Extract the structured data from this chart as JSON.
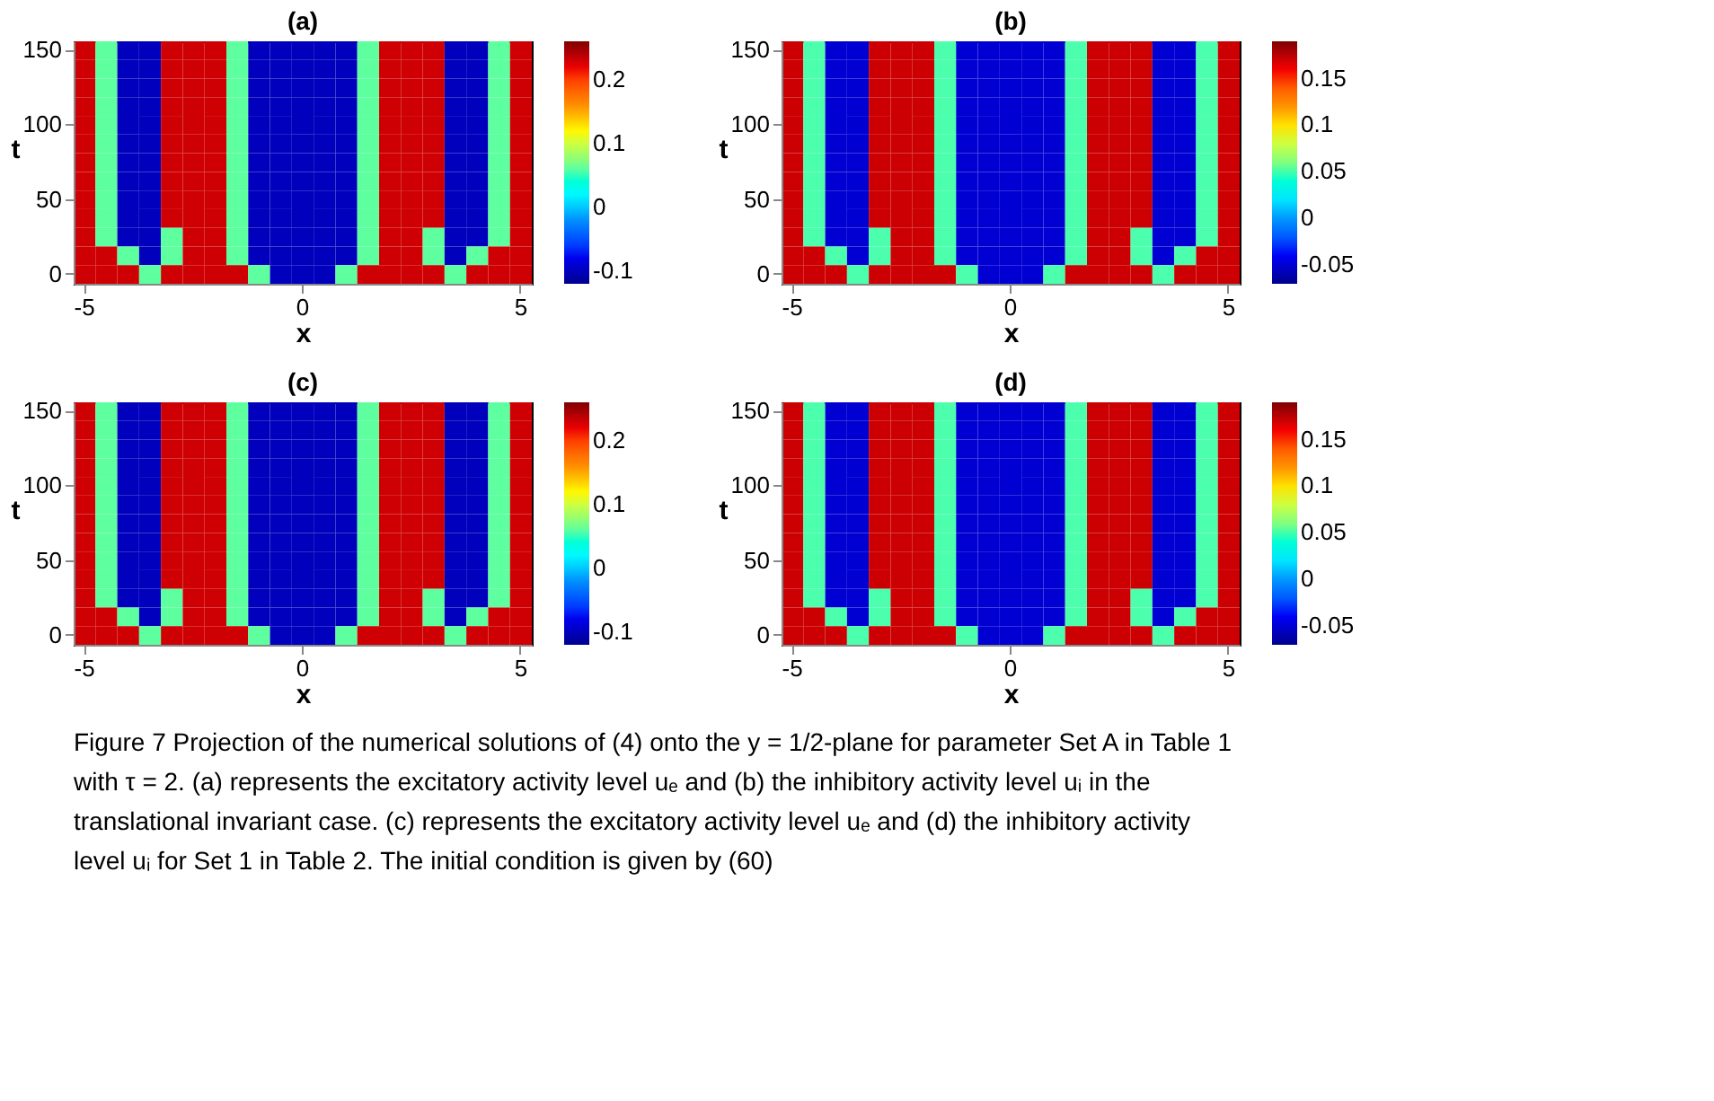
{
  "chart_data": [
    {
      "type": "heatmap",
      "title": "(a)",
      "xlabel": "x",
      "ylabel": "t",
      "clim": [
        -0.12,
        0.26
      ],
      "cticks": [
        -0.1,
        0,
        0.1,
        0.2
      ],
      "grid": false,
      "categories": [
        "-5",
        null,
        null,
        null,
        null,
        null,
        null,
        null,
        null,
        null,
        "0",
        null,
        null,
        null,
        null,
        null,
        null,
        null,
        null,
        null,
        "5"
      ],
      "y_categories": [
        "150",
        null,
        null,
        null,
        "100",
        null,
        null,
        null,
        "50",
        null,
        null,
        null,
        "0"
      ],
      "cells": [
        [
          0.23,
          0.06,
          -0.1,
          -0.1,
          0.23,
          0.23,
          0.23,
          0.06,
          -0.1,
          -0.1,
          -0.1,
          -0.1,
          -0.1,
          0.06,
          0.23,
          0.23,
          0.23,
          -0.1,
          -0.1,
          0.06,
          0.23
        ],
        [
          0.23,
          0.06,
          -0.1,
          -0.1,
          0.23,
          0.23,
          0.23,
          0.06,
          -0.1,
          -0.1,
          -0.1,
          -0.1,
          -0.1,
          0.06,
          0.23,
          0.23,
          0.23,
          -0.1,
          -0.1,
          0.06,
          0.23
        ],
        [
          0.23,
          0.06,
          -0.1,
          -0.1,
          0.23,
          0.23,
          0.23,
          0.06,
          -0.1,
          -0.1,
          -0.1,
          -0.1,
          -0.1,
          0.06,
          0.23,
          0.23,
          0.23,
          -0.1,
          -0.1,
          0.06,
          0.23
        ],
        [
          0.23,
          0.06,
          -0.1,
          -0.1,
          0.23,
          0.23,
          0.23,
          0.06,
          -0.1,
          -0.1,
          -0.1,
          -0.1,
          -0.1,
          0.06,
          0.23,
          0.23,
          0.23,
          -0.1,
          -0.1,
          0.06,
          0.23
        ],
        [
          0.23,
          0.06,
          -0.1,
          -0.1,
          0.23,
          0.23,
          0.23,
          0.06,
          -0.1,
          -0.1,
          -0.1,
          -0.1,
          -0.1,
          0.06,
          0.23,
          0.23,
          0.23,
          -0.1,
          -0.1,
          0.06,
          0.23
        ],
        [
          0.23,
          0.06,
          -0.1,
          -0.1,
          0.23,
          0.23,
          0.23,
          0.06,
          -0.1,
          -0.1,
          -0.1,
          -0.1,
          -0.1,
          0.06,
          0.23,
          0.23,
          0.23,
          -0.1,
          -0.1,
          0.06,
          0.23
        ],
        [
          0.23,
          0.06,
          -0.1,
          -0.1,
          0.23,
          0.23,
          0.23,
          0.06,
          -0.1,
          -0.1,
          -0.1,
          -0.1,
          -0.1,
          0.06,
          0.23,
          0.23,
          0.23,
          -0.1,
          -0.1,
          0.06,
          0.23
        ],
        [
          0.23,
          0.06,
          -0.1,
          -0.1,
          0.23,
          0.23,
          0.23,
          0.06,
          -0.1,
          -0.1,
          -0.1,
          -0.1,
          -0.1,
          0.06,
          0.23,
          0.23,
          0.23,
          -0.1,
          -0.1,
          0.06,
          0.23
        ],
        [
          0.23,
          0.06,
          -0.1,
          -0.1,
          0.23,
          0.23,
          0.23,
          0.06,
          -0.1,
          -0.1,
          -0.1,
          -0.1,
          -0.1,
          0.06,
          0.23,
          0.23,
          0.23,
          -0.1,
          -0.1,
          0.06,
          0.23
        ],
        [
          0.23,
          0.06,
          -0.1,
          -0.1,
          0.23,
          0.23,
          0.23,
          0.06,
          -0.1,
          -0.1,
          -0.1,
          -0.1,
          -0.1,
          0.06,
          0.23,
          0.23,
          0.23,
          -0.1,
          -0.1,
          0.06,
          0.23
        ],
        [
          0.23,
          0.06,
          -0.1,
          -0.1,
          0.06,
          0.23,
          0.23,
          0.06,
          -0.1,
          -0.1,
          -0.1,
          -0.1,
          -0.1,
          0.06,
          0.23,
          0.23,
          0.06,
          -0.1,
          -0.1,
          0.06,
          0.23
        ],
        [
          0.23,
          0.23,
          0.06,
          -0.1,
          0.06,
          0.23,
          0.23,
          0.06,
          -0.1,
          -0.1,
          -0.1,
          -0.1,
          -0.1,
          0.06,
          0.23,
          0.23,
          0.06,
          -0.1,
          0.06,
          0.23,
          0.23
        ],
        [
          0.23,
          0.23,
          0.23,
          0.06,
          0.23,
          0.23,
          0.23,
          0.23,
          0.06,
          -0.1,
          -0.1,
          -0.1,
          0.06,
          0.23,
          0.23,
          0.23,
          0.23,
          0.06,
          0.23,
          0.23,
          0.23
        ]
      ],
      "annotations": [
        "Figure 7  Projection of the numerical solutions of (4) onto the y = 1/2-plane for parameter Set A in Table 1 with τ = 2. (a) represents the excitatory activity level uₑ and (b) the inhibitory activity level uᵢ in the translational invariant case. (c) represents the excitatory activity level uₑ and (d) the inhibitory activity level uᵢ for Set 1 in Table 2. The initial condition is given by (60)"
      ]
    },
    {
      "type": "heatmap",
      "title": "(b)",
      "xlabel": "x",
      "ylabel": "t",
      "clim": [
        -0.07,
        0.19
      ],
      "cticks": [
        -0.05,
        0,
        0.05,
        0.1,
        0.15
      ],
      "grid": false,
      "categories": [
        "-5",
        null,
        null,
        null,
        null,
        null,
        null,
        null,
        null,
        null,
        "0",
        null,
        null,
        null,
        null,
        null,
        null,
        null,
        null,
        null,
        "5"
      ],
      "y_categories": [
        "150",
        null,
        null,
        null,
        "100",
        null,
        null,
        null,
        "50",
        null,
        null,
        null,
        "0"
      ],
      "cells": [
        [
          0.17,
          0.05,
          -0.05,
          -0.05,
          0.17,
          0.17,
          0.17,
          0.05,
          -0.05,
          -0.05,
          -0.05,
          -0.05,
          -0.05,
          0.05,
          0.17,
          0.17,
          0.17,
          -0.05,
          -0.05,
          0.05,
          0.17
        ],
        [
          0.17,
          0.05,
          -0.05,
          -0.05,
          0.17,
          0.17,
          0.17,
          0.05,
          -0.05,
          -0.05,
          -0.05,
          -0.05,
          -0.05,
          0.05,
          0.17,
          0.17,
          0.17,
          -0.05,
          -0.05,
          0.05,
          0.17
        ],
        [
          0.17,
          0.05,
          -0.05,
          -0.05,
          0.17,
          0.17,
          0.17,
          0.05,
          -0.05,
          -0.05,
          -0.05,
          -0.05,
          -0.05,
          0.05,
          0.17,
          0.17,
          0.17,
          -0.05,
          -0.05,
          0.05,
          0.17
        ],
        [
          0.17,
          0.05,
          -0.05,
          -0.05,
          0.17,
          0.17,
          0.17,
          0.05,
          -0.05,
          -0.05,
          -0.05,
          -0.05,
          -0.05,
          0.05,
          0.17,
          0.17,
          0.17,
          -0.05,
          -0.05,
          0.05,
          0.17
        ],
        [
          0.17,
          0.05,
          -0.05,
          -0.05,
          0.17,
          0.17,
          0.17,
          0.05,
          -0.05,
          -0.05,
          -0.05,
          -0.05,
          -0.05,
          0.05,
          0.17,
          0.17,
          0.17,
          -0.05,
          -0.05,
          0.05,
          0.17
        ],
        [
          0.17,
          0.05,
          -0.05,
          -0.05,
          0.17,
          0.17,
          0.17,
          0.05,
          -0.05,
          -0.05,
          -0.05,
          -0.05,
          -0.05,
          0.05,
          0.17,
          0.17,
          0.17,
          -0.05,
          -0.05,
          0.05,
          0.17
        ],
        [
          0.17,
          0.05,
          -0.05,
          -0.05,
          0.17,
          0.17,
          0.17,
          0.05,
          -0.05,
          -0.05,
          -0.05,
          -0.05,
          -0.05,
          0.05,
          0.17,
          0.17,
          0.17,
          -0.05,
          -0.05,
          0.05,
          0.17
        ],
        [
          0.17,
          0.05,
          -0.05,
          -0.05,
          0.17,
          0.17,
          0.17,
          0.05,
          -0.05,
          -0.05,
          -0.05,
          -0.05,
          -0.05,
          0.05,
          0.17,
          0.17,
          0.17,
          -0.05,
          -0.05,
          0.05,
          0.17
        ],
        [
          0.17,
          0.05,
          -0.05,
          -0.05,
          0.17,
          0.17,
          0.17,
          0.05,
          -0.05,
          -0.05,
          -0.05,
          -0.05,
          -0.05,
          0.05,
          0.17,
          0.17,
          0.17,
          -0.05,
          -0.05,
          0.05,
          0.17
        ],
        [
          0.17,
          0.05,
          -0.05,
          -0.05,
          0.17,
          0.17,
          0.17,
          0.05,
          -0.05,
          -0.05,
          -0.05,
          -0.05,
          -0.05,
          0.05,
          0.17,
          0.17,
          0.17,
          -0.05,
          -0.05,
          0.05,
          0.17
        ],
        [
          0.17,
          0.05,
          -0.05,
          -0.05,
          0.05,
          0.17,
          0.17,
          0.05,
          -0.05,
          -0.05,
          -0.05,
          -0.05,
          -0.05,
          0.05,
          0.17,
          0.17,
          0.05,
          -0.05,
          -0.05,
          0.05,
          0.17
        ],
        [
          0.17,
          0.17,
          0.05,
          -0.05,
          0.05,
          0.17,
          0.17,
          0.05,
          -0.05,
          -0.05,
          -0.05,
          -0.05,
          -0.05,
          0.05,
          0.17,
          0.17,
          0.05,
          -0.05,
          0.05,
          0.17,
          0.17
        ],
        [
          0.17,
          0.17,
          0.17,
          0.05,
          0.17,
          0.17,
          0.17,
          0.17,
          0.05,
          -0.05,
          -0.05,
          -0.05,
          0.05,
          0.17,
          0.17,
          0.17,
          0.17,
          0.05,
          0.17,
          0.17,
          0.17
        ]
      ]
    },
    {
      "type": "heatmap",
      "title": "(c)",
      "xlabel": "x",
      "ylabel": "t",
      "clim": [
        -0.12,
        0.26
      ],
      "cticks": [
        -0.1,
        0,
        0.1,
        0.2
      ],
      "grid": false,
      "categories": [
        "-5",
        null,
        null,
        null,
        null,
        null,
        null,
        null,
        null,
        null,
        "0",
        null,
        null,
        null,
        null,
        null,
        null,
        null,
        null,
        null,
        "5"
      ],
      "y_categories": [
        "150",
        null,
        null,
        null,
        "100",
        null,
        null,
        null,
        "50",
        null,
        null,
        null,
        "0"
      ],
      "cells": [
        [
          0.23,
          0.06,
          -0.1,
          -0.1,
          0.23,
          0.23,
          0.23,
          0.06,
          -0.1,
          -0.1,
          -0.1,
          -0.1,
          -0.1,
          0.06,
          0.23,
          0.23,
          0.23,
          -0.1,
          -0.1,
          0.06,
          0.23
        ],
        [
          0.23,
          0.06,
          -0.1,
          -0.1,
          0.23,
          0.23,
          0.23,
          0.06,
          -0.1,
          -0.1,
          -0.1,
          -0.1,
          -0.1,
          0.06,
          0.23,
          0.23,
          0.23,
          -0.1,
          -0.1,
          0.06,
          0.23
        ],
        [
          0.23,
          0.06,
          -0.1,
          -0.1,
          0.23,
          0.23,
          0.23,
          0.06,
          -0.1,
          -0.1,
          -0.1,
          -0.1,
          -0.1,
          0.06,
          0.23,
          0.23,
          0.23,
          -0.1,
          -0.1,
          0.06,
          0.23
        ],
        [
          0.23,
          0.06,
          -0.1,
          -0.1,
          0.23,
          0.23,
          0.23,
          0.06,
          -0.1,
          -0.1,
          -0.1,
          -0.1,
          -0.1,
          0.06,
          0.23,
          0.23,
          0.23,
          -0.1,
          -0.1,
          0.06,
          0.23
        ],
        [
          0.23,
          0.06,
          -0.1,
          -0.1,
          0.23,
          0.23,
          0.23,
          0.06,
          -0.1,
          -0.1,
          -0.1,
          -0.1,
          -0.1,
          0.06,
          0.23,
          0.23,
          0.23,
          -0.1,
          -0.1,
          0.06,
          0.23
        ],
        [
          0.23,
          0.06,
          -0.1,
          -0.1,
          0.23,
          0.23,
          0.23,
          0.06,
          -0.1,
          -0.1,
          -0.1,
          -0.1,
          -0.1,
          0.06,
          0.23,
          0.23,
          0.23,
          -0.1,
          -0.1,
          0.06,
          0.23
        ],
        [
          0.23,
          0.06,
          -0.1,
          -0.1,
          0.23,
          0.23,
          0.23,
          0.06,
          -0.1,
          -0.1,
          -0.1,
          -0.1,
          -0.1,
          0.06,
          0.23,
          0.23,
          0.23,
          -0.1,
          -0.1,
          0.06,
          0.23
        ],
        [
          0.23,
          0.06,
          -0.1,
          -0.1,
          0.23,
          0.23,
          0.23,
          0.06,
          -0.1,
          -0.1,
          -0.1,
          -0.1,
          -0.1,
          0.06,
          0.23,
          0.23,
          0.23,
          -0.1,
          -0.1,
          0.06,
          0.23
        ],
        [
          0.23,
          0.06,
          -0.1,
          -0.1,
          0.23,
          0.23,
          0.23,
          0.06,
          -0.1,
          -0.1,
          -0.1,
          -0.1,
          -0.1,
          0.06,
          0.23,
          0.23,
          0.23,
          -0.1,
          -0.1,
          0.06,
          0.23
        ],
        [
          0.23,
          0.06,
          -0.1,
          -0.1,
          0.23,
          0.23,
          0.23,
          0.06,
          -0.1,
          -0.1,
          -0.1,
          -0.1,
          -0.1,
          0.06,
          0.23,
          0.23,
          0.23,
          -0.1,
          -0.1,
          0.06,
          0.23
        ],
        [
          0.23,
          0.06,
          -0.1,
          -0.1,
          0.06,
          0.23,
          0.23,
          0.06,
          -0.1,
          -0.1,
          -0.1,
          -0.1,
          -0.1,
          0.06,
          0.23,
          0.23,
          0.06,
          -0.1,
          -0.1,
          0.06,
          0.23
        ],
        [
          0.23,
          0.23,
          0.06,
          -0.1,
          0.06,
          0.23,
          0.23,
          0.06,
          -0.1,
          -0.1,
          -0.1,
          -0.1,
          -0.1,
          0.06,
          0.23,
          0.23,
          0.06,
          -0.1,
          0.06,
          0.23,
          0.23
        ],
        [
          0.23,
          0.23,
          0.23,
          0.06,
          0.23,
          0.23,
          0.23,
          0.23,
          0.06,
          -0.1,
          -0.1,
          -0.1,
          0.06,
          0.23,
          0.23,
          0.23,
          0.23,
          0.06,
          0.23,
          0.23,
          0.23
        ]
      ]
    },
    {
      "type": "heatmap",
      "title": "(d)",
      "xlabel": "x",
      "ylabel": "t",
      "clim": [
        -0.07,
        0.19
      ],
      "cticks": [
        -0.05,
        0,
        0.05,
        0.1,
        0.15
      ],
      "grid": false,
      "categories": [
        "-5",
        null,
        null,
        null,
        null,
        null,
        null,
        null,
        null,
        null,
        "0",
        null,
        null,
        null,
        null,
        null,
        null,
        null,
        null,
        null,
        "5"
      ],
      "y_categories": [
        "150",
        null,
        null,
        null,
        "100",
        null,
        null,
        null,
        "50",
        null,
        null,
        null,
        "0"
      ],
      "cells": [
        [
          0.17,
          0.05,
          -0.05,
          -0.05,
          0.17,
          0.17,
          0.17,
          0.05,
          -0.05,
          -0.05,
          -0.05,
          -0.05,
          -0.05,
          0.05,
          0.17,
          0.17,
          0.17,
          -0.05,
          -0.05,
          0.05,
          0.17
        ],
        [
          0.17,
          0.05,
          -0.05,
          -0.05,
          0.17,
          0.17,
          0.17,
          0.05,
          -0.05,
          -0.05,
          -0.05,
          -0.05,
          -0.05,
          0.05,
          0.17,
          0.17,
          0.17,
          -0.05,
          -0.05,
          0.05,
          0.17
        ],
        [
          0.17,
          0.05,
          -0.05,
          -0.05,
          0.17,
          0.17,
          0.17,
          0.05,
          -0.05,
          -0.05,
          -0.05,
          -0.05,
          -0.05,
          0.05,
          0.17,
          0.17,
          0.17,
          -0.05,
          -0.05,
          0.05,
          0.17
        ],
        [
          0.17,
          0.05,
          -0.05,
          -0.05,
          0.17,
          0.17,
          0.17,
          0.05,
          -0.05,
          -0.05,
          -0.05,
          -0.05,
          -0.05,
          0.05,
          0.17,
          0.17,
          0.17,
          -0.05,
          -0.05,
          0.05,
          0.17
        ],
        [
          0.17,
          0.05,
          -0.05,
          -0.05,
          0.17,
          0.17,
          0.17,
          0.05,
          -0.05,
          -0.05,
          -0.05,
          -0.05,
          -0.05,
          0.05,
          0.17,
          0.17,
          0.17,
          -0.05,
          -0.05,
          0.05,
          0.17
        ],
        [
          0.17,
          0.05,
          -0.05,
          -0.05,
          0.17,
          0.17,
          0.17,
          0.05,
          -0.05,
          -0.05,
          -0.05,
          -0.05,
          -0.05,
          0.05,
          0.17,
          0.17,
          0.17,
          -0.05,
          -0.05,
          0.05,
          0.17
        ],
        [
          0.17,
          0.05,
          -0.05,
          -0.05,
          0.17,
          0.17,
          0.17,
          0.05,
          -0.05,
          -0.05,
          -0.05,
          -0.05,
          -0.05,
          0.05,
          0.17,
          0.17,
          0.17,
          -0.05,
          -0.05,
          0.05,
          0.17
        ],
        [
          0.17,
          0.05,
          -0.05,
          -0.05,
          0.17,
          0.17,
          0.17,
          0.05,
          -0.05,
          -0.05,
          -0.05,
          -0.05,
          -0.05,
          0.05,
          0.17,
          0.17,
          0.17,
          -0.05,
          -0.05,
          0.05,
          0.17
        ],
        [
          0.17,
          0.05,
          -0.05,
          -0.05,
          0.17,
          0.17,
          0.17,
          0.05,
          -0.05,
          -0.05,
          -0.05,
          -0.05,
          -0.05,
          0.05,
          0.17,
          0.17,
          0.17,
          -0.05,
          -0.05,
          0.05,
          0.17
        ],
        [
          0.17,
          0.05,
          -0.05,
          -0.05,
          0.17,
          0.17,
          0.17,
          0.05,
          -0.05,
          -0.05,
          -0.05,
          -0.05,
          -0.05,
          0.05,
          0.17,
          0.17,
          0.17,
          -0.05,
          -0.05,
          0.05,
          0.17
        ],
        [
          0.17,
          0.05,
          -0.05,
          -0.05,
          0.05,
          0.17,
          0.17,
          0.05,
          -0.05,
          -0.05,
          -0.05,
          -0.05,
          -0.05,
          0.05,
          0.17,
          0.17,
          0.05,
          -0.05,
          -0.05,
          0.05,
          0.17
        ],
        [
          0.17,
          0.17,
          0.05,
          -0.05,
          0.05,
          0.17,
          0.17,
          0.05,
          -0.05,
          -0.05,
          -0.05,
          -0.05,
          -0.05,
          0.05,
          0.17,
          0.17,
          0.05,
          -0.05,
          0.05,
          0.17,
          0.17
        ],
        [
          0.17,
          0.17,
          0.17,
          0.05,
          0.17,
          0.17,
          0.17,
          0.17,
          0.05,
          -0.05,
          -0.05,
          -0.05,
          0.05,
          0.17,
          0.17,
          0.17,
          0.17,
          0.05,
          0.17,
          0.17,
          0.17
        ]
      ]
    }
  ]
}
